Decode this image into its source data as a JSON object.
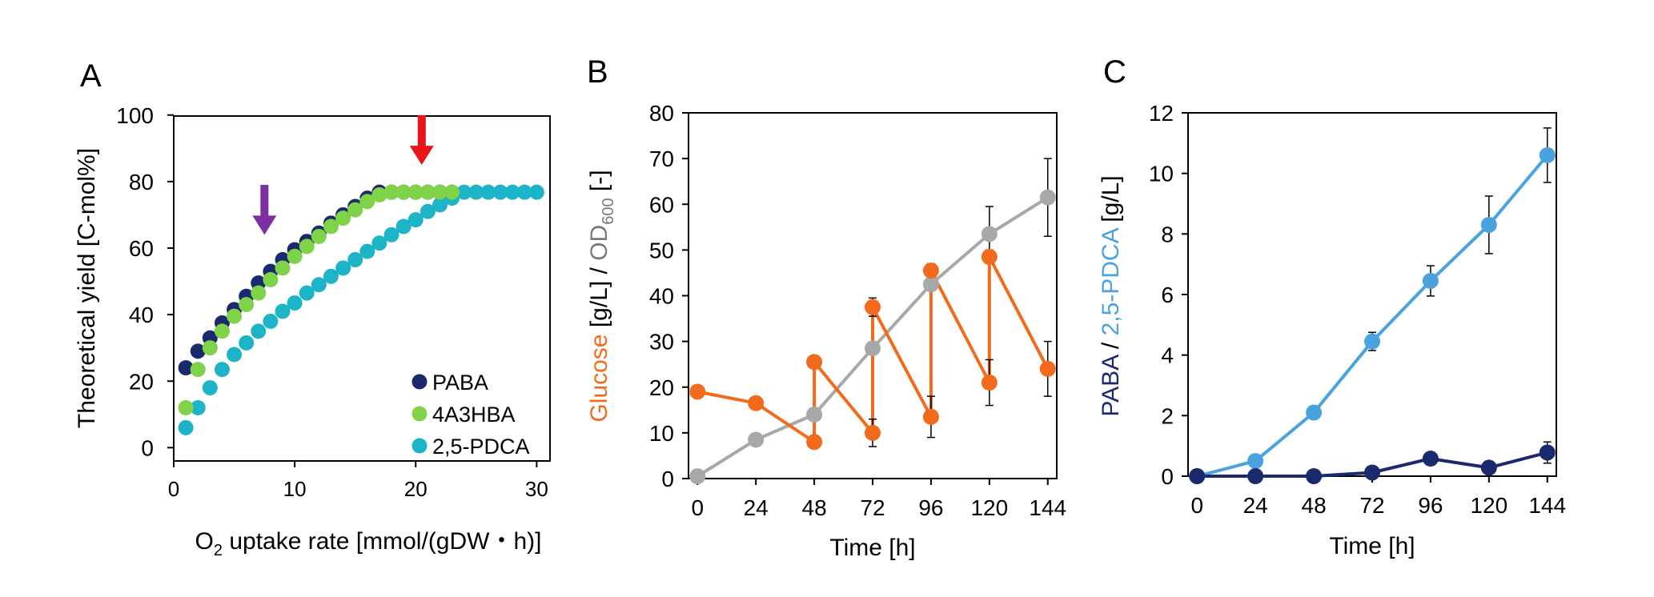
{
  "colors": {
    "paba": "#1a2a6c",
    "a4a3hba": "#7ed348",
    "pdca_scatter": "#1eb4c8",
    "glucose": "#f26b1d",
    "od600": "#a8a8a8",
    "pdca_line": "#4aa3df",
    "paba_line": "#1a2a6c",
    "red_arrow": "#e8161b",
    "purple_arrow": "#7b2fa0"
  },
  "panels": {
    "A": {
      "letter": "A"
    },
    "B": {
      "letter": "B"
    },
    "C": {
      "letter": "C"
    }
  },
  "chart_data": [
    {
      "panel": "A",
      "type": "scatter",
      "ylabel": "Theoretical yield [C-mol%]",
      "xlabel_prefix": "O",
      "xlabel_sub": "2",
      "xlabel_suffix": " uptake rate [mmol/(gDW・h)]",
      "xlim": [
        0,
        30
      ],
      "ylim": [
        0,
        100
      ],
      "xticks": [
        0,
        10,
        20,
        30
      ],
      "yticks": [
        0,
        20,
        40,
        60,
        80,
        100
      ],
      "legend_position": "bottom-right",
      "grid": false,
      "arrows": [
        {
          "color": "purple",
          "x": 7.5,
          "y_from": 79,
          "y_to": 64
        },
        {
          "color": "red",
          "x": 20.5,
          "y_from": 100,
          "y_to": 85
        }
      ],
      "series": [
        {
          "name": "PABA",
          "x": [
            1,
            2,
            3,
            4,
            5,
            6,
            7,
            8,
            9,
            10,
            11,
            12,
            13,
            14,
            15,
            16,
            17,
            18,
            19,
            20,
            21,
            22,
            23
          ],
          "y": [
            24,
            29,
            33,
            37.5,
            41.5,
            45.5,
            49.5,
            53,
            56.5,
            59.5,
            62,
            64.5,
            67.5,
            70,
            72.5,
            75,
            76.8,
            76.8,
            76.8,
            76.8,
            76.8,
            76.8,
            76.8
          ]
        },
        {
          "name": "4A3HBA",
          "x": [
            1,
            2,
            3,
            4,
            5,
            6,
            7,
            8,
            9,
            10,
            11,
            12,
            13,
            14,
            15,
            16,
            17,
            18,
            19,
            20,
            21,
            22,
            23
          ],
          "y": [
            12,
            23.5,
            30,
            35,
            39.5,
            43,
            46.5,
            50.5,
            54,
            57.5,
            60.5,
            63.5,
            66.5,
            69,
            71.5,
            74,
            76,
            76.8,
            76.8,
            76.8,
            76.8,
            76.8,
            76.8
          ]
        },
        {
          "name": "2,5-PDCA",
          "x": [
            1,
            2,
            3,
            4,
            5,
            6,
            7,
            8,
            9,
            10,
            11,
            12,
            13,
            14,
            15,
            16,
            17,
            18,
            19,
            20,
            21,
            22,
            23,
            24,
            25,
            26,
            27,
            28,
            29,
            30
          ],
          "y": [
            6,
            12,
            18,
            23.5,
            28,
            31.5,
            35,
            38,
            41,
            43.5,
            46.5,
            49,
            51.5,
            54,
            56.5,
            59,
            61.5,
            64,
            66.5,
            68.5,
            71,
            73,
            75,
            76.8,
            76.8,
            76.8,
            76.8,
            76.8,
            76.8,
            76.8
          ]
        }
      ]
    },
    {
      "panel": "B",
      "type": "line",
      "ylabel_part1": "Glucose",
      "ylabel_part2": " [g/L] / ",
      "ylabel_part3": "OD",
      "ylabel_sub": "600",
      "ylabel_part4": " [-]",
      "xlabel": "Time [h]",
      "xlim": [
        0,
        144
      ],
      "ylim": [
        0,
        80
      ],
      "xticks": [
        0,
        24,
        48,
        72,
        96,
        120,
        144
      ],
      "yticks": [
        0,
        10,
        20,
        30,
        40,
        50,
        60,
        70,
        80
      ],
      "grid": false,
      "series": [
        {
          "name": "OD600",
          "x": [
            0,
            24,
            48,
            72,
            96,
            120,
            144
          ],
          "y": [
            0.5,
            8.5,
            14,
            28.5,
            42.5,
            53.5,
            61.5
          ],
          "err": [
            0,
            0,
            0,
            0,
            0,
            6,
            8.5
          ]
        },
        {
          "name": "Glucose",
          "x": [
            0,
            24,
            48,
            48,
            72,
            72,
            96,
            96,
            120,
            120,
            144
          ],
          "y": [
            19,
            16.5,
            8,
            25.5,
            10,
            37.5,
            13.5,
            45.5,
            21,
            48.5,
            24
          ],
          "err": [
            0,
            0,
            0,
            0,
            3,
            2,
            4.5,
            1.5,
            5,
            1.5,
            6
          ]
        }
      ]
    },
    {
      "panel": "C",
      "type": "line",
      "ylabel_part1": "PABA",
      "ylabel_part2": " / ",
      "ylabel_part3": "2,5-PDCA",
      "ylabel_part4": " [g/L]",
      "xlabel": "Time [h]",
      "xlim": [
        0,
        144
      ],
      "ylim": [
        0,
        12
      ],
      "xticks": [
        0,
        24,
        48,
        72,
        96,
        120,
        144
      ],
      "yticks": [
        0,
        2,
        4,
        6,
        8,
        10,
        12
      ],
      "grid": false,
      "series": [
        {
          "name": "2,5-PDCA",
          "x": [
            0,
            24,
            48,
            72,
            96,
            120,
            144
          ],
          "y": [
            0,
            0.5,
            2.1,
            4.45,
            6.45,
            8.3,
            10.6
          ],
          "err": [
            0,
            0,
            0,
            0.3,
            0.5,
            0.95,
            0.9
          ]
        },
        {
          "name": "PABA",
          "x": [
            0,
            24,
            48,
            72,
            96,
            120,
            144
          ],
          "y": [
            0,
            0,
            0,
            0.12,
            0.58,
            0.28,
            0.78
          ],
          "err": [
            0,
            0,
            0,
            0,
            0,
            0,
            0.35
          ]
        }
      ]
    }
  ]
}
